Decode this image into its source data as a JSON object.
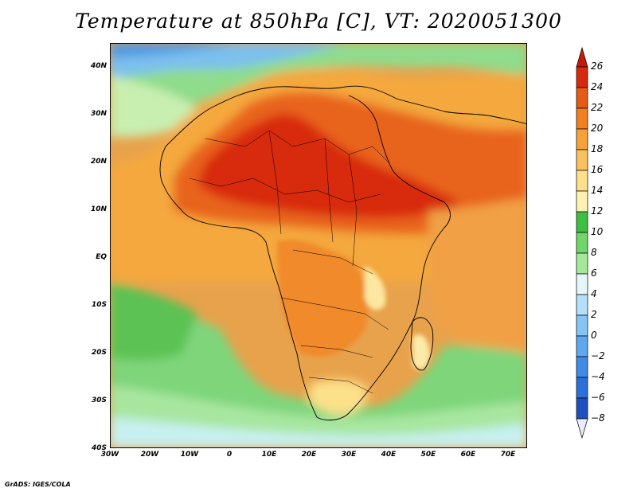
{
  "title": "Temperature at 850hPa [C], VT: 2020051300",
  "credit": "GrADS: IGES/COLA",
  "map": {
    "type": "filled-contour",
    "variable": "Temperature",
    "level": "850hPa",
    "unit": "C",
    "valid_time": "2020051300",
    "lat_labels": [
      "40N",
      "30N",
      "20N",
      "10N",
      "EQ",
      "10S",
      "20S",
      "30S",
      "40S"
    ],
    "lon_labels": [
      "30W",
      "20W",
      "10W",
      "0",
      "10E",
      "20E",
      "30E",
      "40E",
      "50E",
      "60E",
      "70E"
    ]
  },
  "colorbar": {
    "labels": [
      "26",
      "24",
      "22",
      "20",
      "18",
      "16",
      "14",
      "12",
      "10",
      "8",
      "6",
      "4",
      "2",
      "0",
      "−2",
      "−4",
      "−6",
      "−8"
    ],
    "levels": [
      -8,
      -6,
      -4,
      -2,
      0,
      2,
      4,
      6,
      8,
      10,
      12,
      14,
      16,
      18,
      20,
      22,
      24,
      26
    ],
    "colors": [
      "#0d1d6b",
      "#1f4fbf",
      "#2c6fd8",
      "#3f8be6",
      "#5ea8f0",
      "#86c4f6",
      "#b4e0fb",
      "#e4f6f8",
      "#a6e89a",
      "#6fd66a",
      "#3dbf43",
      "#fff2b0",
      "#fde08a",
      "#fac25e",
      "#f6a23a",
      "#f08020",
      "#e55a14",
      "#d8290f",
      "#c51a0a"
    ],
    "extends": "both"
  }
}
